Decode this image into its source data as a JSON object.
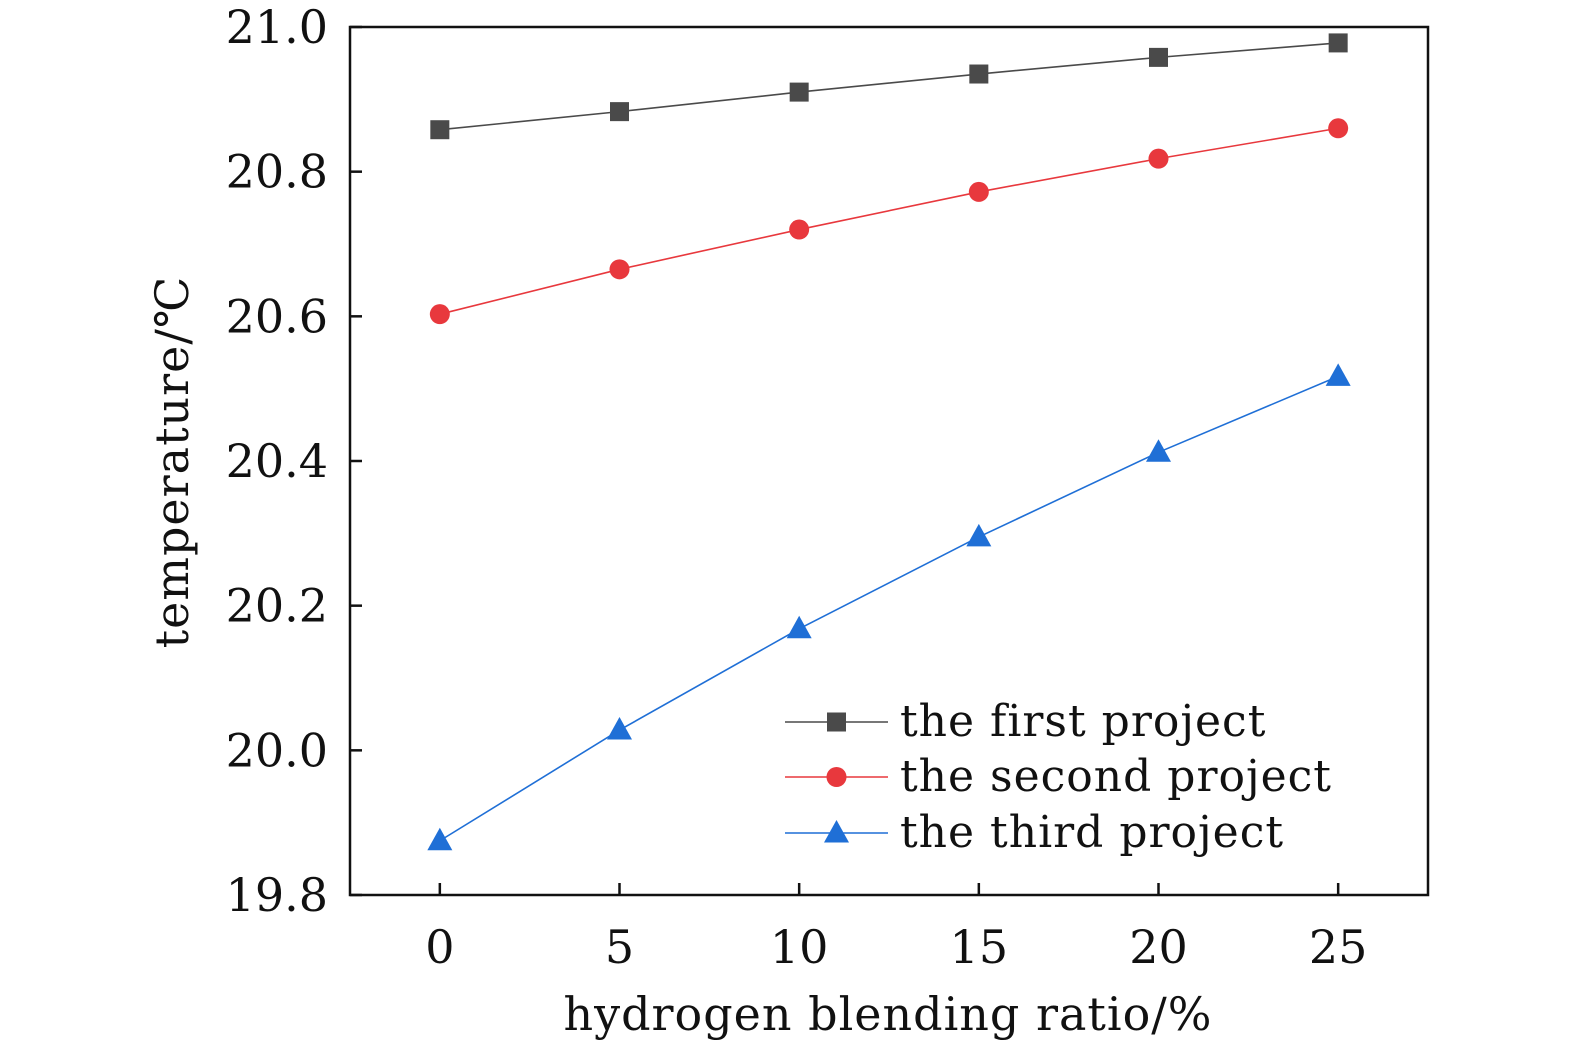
{
  "chart_data": {
    "type": "line",
    "title": "",
    "xlabel": "hydrogen blending ratio/%",
    "ylabel": "temperature/℃",
    "x": [
      0,
      5,
      10,
      15,
      20,
      25
    ],
    "xlim": [
      -2.5,
      27.5
    ],
    "ylim": [
      19.8,
      21.0
    ],
    "xticks": [
      0,
      5,
      10,
      15,
      20,
      25
    ],
    "yticks": [
      19.8,
      20.0,
      20.2,
      20.4,
      20.6,
      20.8,
      21.0
    ],
    "xtick_labels": [
      "0",
      "5",
      "10",
      "15",
      "20",
      "25"
    ],
    "ytick_labels": [
      "19.8",
      "20.0",
      "20.2",
      "20.4",
      "20.6",
      "20.8",
      "21.0"
    ],
    "grid": false,
    "legend_position": "bottom-right",
    "series": [
      {
        "name": "the first project",
        "values": [
          20.858,
          20.883,
          20.91,
          20.935,
          20.958,
          20.978
        ],
        "color": "#4a4a4a",
        "marker": "square"
      },
      {
        "name": "the second project",
        "values": [
          20.603,
          20.665,
          20.72,
          20.772,
          20.818,
          20.86
        ],
        "color": "#e8383d",
        "marker": "circle"
      },
      {
        "name": "the third project",
        "values": [
          19.875,
          20.028,
          20.168,
          20.295,
          20.412,
          20.517
        ],
        "color": "#1f6fd6",
        "marker": "triangle"
      }
    ]
  }
}
